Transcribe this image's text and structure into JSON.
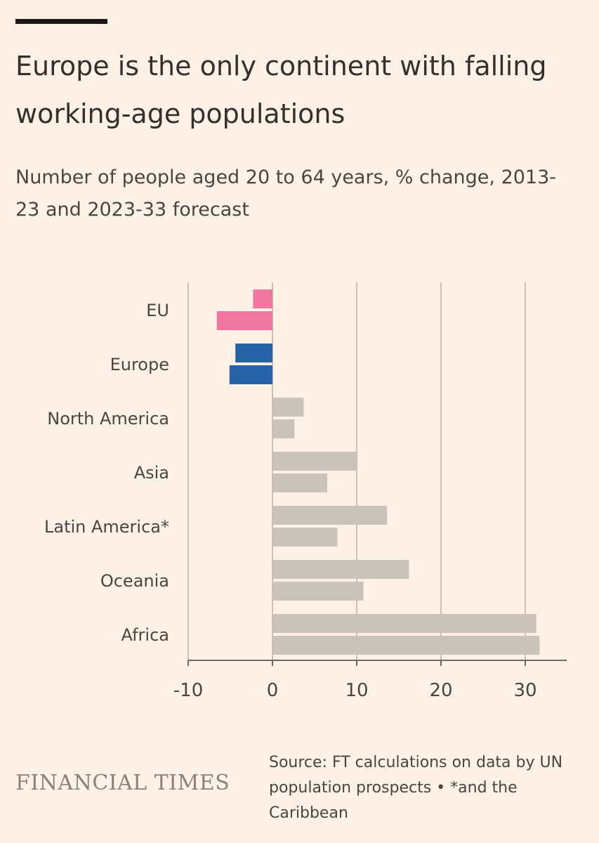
{
  "header": {
    "title": "Europe is the only continent with falling working-age populations",
    "subtitle": "Number of people aged 20 to 64 years, % change, 2013-23 and 2023-33 forecast"
  },
  "footer": {
    "brand": "FINANCIAL TIMES",
    "source": "Source: FT calculations on data by UN population prospects • *and the Caribbean"
  },
  "chart_data": {
    "type": "bar",
    "orientation": "horizontal",
    "categories": [
      "EU",
      "Europe",
      "North America",
      "Asia",
      "Latin America*",
      "Oceania",
      "Africa"
    ],
    "series": [
      {
        "values": [
          -2.3,
          -4.4,
          3.7,
          10.0,
          13.6,
          16.2,
          31.3
        ]
      },
      {
        "values": [
          -6.6,
          -5.1,
          2.6,
          6.5,
          7.7,
          10.8,
          31.7
        ]
      }
    ],
    "bar_colors": {
      "EU": "#F075A0",
      "Europe": "#2563A6",
      "default": "#CBC2BA"
    },
    "gridline_color": "#C8BFB7",
    "axis_color": "#6F6865",
    "xlim": [
      -10,
      35
    ],
    "xticks": [
      -10,
      0,
      10,
      20,
      30
    ],
    "xtick_labels": [
      "-10",
      "0",
      "10",
      "20",
      "30"
    ],
    "grid": true
  }
}
